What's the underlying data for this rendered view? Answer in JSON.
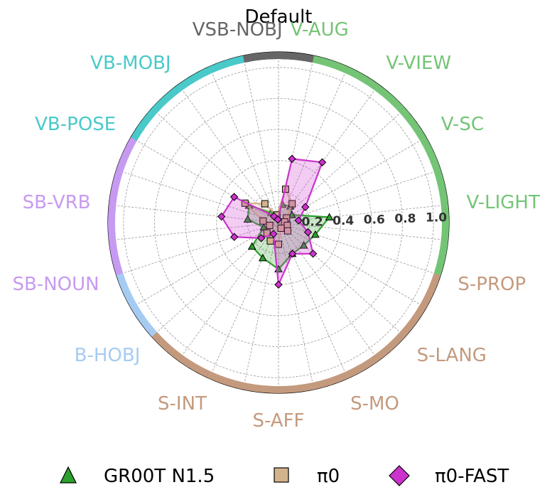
{
  "chart_data": {
    "type": "radar",
    "title": "Default",
    "rlim": [
      0,
      1.1
    ],
    "rticks": [
      "0.2",
      "0.4",
      "0.6",
      "0.8",
      "1.0"
    ],
    "rtick_values": [
      0.2,
      0.4,
      0.6,
      0.8,
      1.0
    ],
    "grid": true,
    "legend_position": "bottom",
    "categories": [
      {
        "label": "V-AUG",
        "group": "V"
      },
      {
        "label": "V-VIEW",
        "group": "V"
      },
      {
        "label": "V-SC",
        "group": "V"
      },
      {
        "label": "V-LIGHT",
        "group": "V"
      },
      {
        "label": "S-PROP",
        "group": "S"
      },
      {
        "label": "S-LANG",
        "group": "S"
      },
      {
        "label": "S-MO",
        "group": "S"
      },
      {
        "label": "S-AFF",
        "group": "S"
      },
      {
        "label": "S-INT",
        "group": "S"
      },
      {
        "label": "B-HOBJ",
        "group": "B"
      },
      {
        "label": "SB-NOUN",
        "group": "SB"
      },
      {
        "label": "SB-VRB",
        "group": "SB"
      },
      {
        "label": "VB-POSE",
        "group": "VB"
      },
      {
        "label": "VB-MOBJ",
        "group": "VB"
      },
      {
        "label": "VSB-NOBJ",
        "group": "VSB"
      }
    ],
    "group_colors": {
      "V": "#74c476",
      "S": "#c49a7e",
      "B": "#a6cbf3",
      "SB": "#c79af2",
      "VB": "#4ac9c9",
      "VSB": "#666666",
      "NONE": "#000000"
    },
    "series": [
      {
        "name": "GR00T N1.5",
        "color": "#2ca02c",
        "marker": "triangle",
        "values": [
          0.12,
          0.13,
          0.1,
          0.33,
          0.25,
          0.22,
          0.22,
          0.3,
          0.25,
          0.23,
          0.1,
          0.2,
          0.22,
          0.08,
          0.04
        ]
      },
      {
        "name": "π0",
        "color": "#d2b48c",
        "marker": "square",
        "values": [
          0.22,
          0.15,
          0.06,
          0.04,
          0.06,
          0.08,
          0.04,
          0.14,
          0.13,
          0.1,
          0.06,
          0.1,
          0.25,
          0.15,
          0.05
        ]
      },
      {
        "name": "π0-FAST",
        "color": "#cc33cc",
        "marker": "diamond",
        "values": [
          0.42,
          0.48,
          0.2,
          0.13,
          0.2,
          0.3,
          0.22,
          0.4,
          0.08,
          0.15,
          0.3,
          0.37,
          0.33,
          0.05,
          0.02
        ]
      }
    ],
    "legend": [
      {
        "label": "GR00T N1.5"
      },
      {
        "label": "π0"
      },
      {
        "label": "π0-FAST"
      }
    ]
  }
}
